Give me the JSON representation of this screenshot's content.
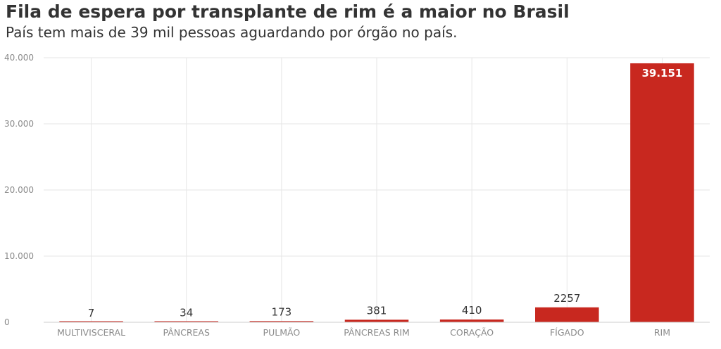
{
  "header": {
    "title": "Fila de espera por transplante de rim é a maior no Brasil",
    "subtitle": "País tem mais de 39 mil pessoas aguardando por órgão no país."
  },
  "colors": {
    "bar": "#c8281f",
    "grid": "#e6e6e6",
    "axis": "#cccccc"
  },
  "chart_data": {
    "type": "bar",
    "categories": [
      "MULTIVISCERAL",
      "PÂNCREAS",
      "PULMÃO",
      "PÂNCREAS RIM",
      "CORAÇÃO",
      "FÍGADO",
      "RIM"
    ],
    "values": [
      7,
      34,
      173,
      381,
      410,
      2257,
      39151
    ],
    "value_labels": [
      "7",
      "34",
      "173",
      "381",
      "410",
      "2257",
      "39.151"
    ],
    "yticks": [
      0,
      10000,
      20000,
      30000,
      40000
    ],
    "ytick_labels": [
      "0",
      "10.000",
      "20.000",
      "30.000",
      "40.000"
    ],
    "ylim": [
      0,
      40000
    ],
    "grid": true
  }
}
